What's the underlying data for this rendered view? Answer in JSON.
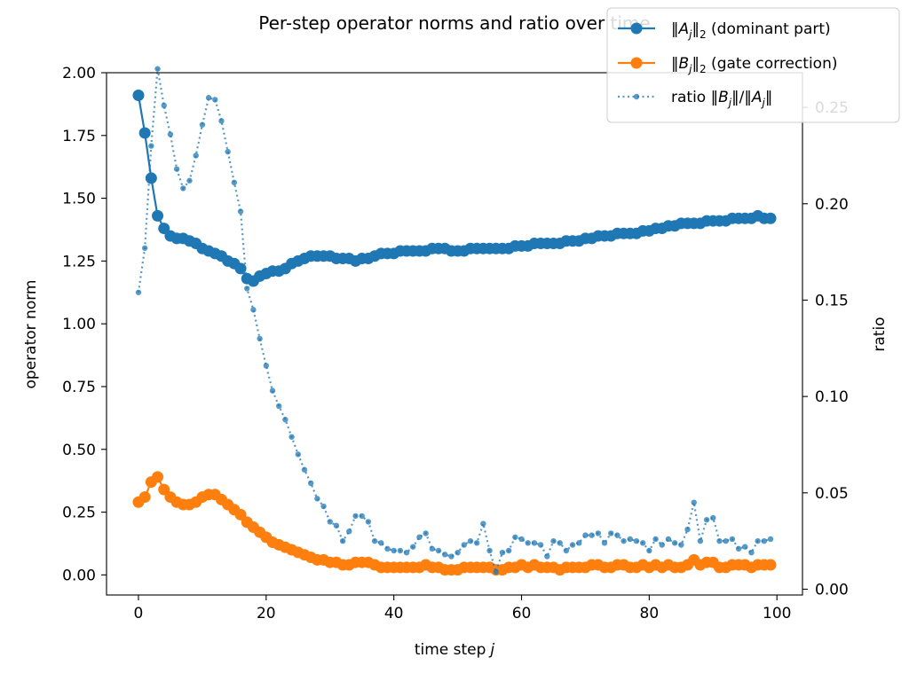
{
  "chart_data": {
    "type": "line",
    "title": "Per-step operator norms and ratio over time",
    "xlabel": "time step",
    "xlabel_var": "j",
    "ylabel": "operator norm",
    "y2label": "ratio",
    "xlim": [
      -5,
      104
    ],
    "ylim": [
      -0.08,
      2.0
    ],
    "y2lim": [
      -0.003,
      0.268
    ],
    "xticks": [
      0,
      20,
      40,
      60,
      80,
      100
    ],
    "xtick_labels": [
      "0",
      "20",
      "40",
      "60",
      "80",
      "100"
    ],
    "yticks": [
      0.0,
      0.25,
      0.5,
      0.75,
      1.0,
      1.25,
      1.5,
      1.75,
      2.0
    ],
    "ytick_labels": [
      "0.00",
      "0.25",
      "0.50",
      "0.75",
      "1.00",
      "1.25",
      "1.50",
      "1.75",
      "2.00"
    ],
    "y2ticks": [
      0.0,
      0.05,
      0.1,
      0.15,
      0.2,
      0.25
    ],
    "y2tick_labels": [
      "0.00",
      "0.05",
      "0.10",
      "0.15",
      "0.20",
      "0.25"
    ],
    "legend_location": "top-right",
    "series": [
      {
        "name": "‖A_j‖₂ (dominant part)",
        "legend_parts": [
          "‖",
          "A",
          "j",
          "‖",
          "2",
          " (dominant part)"
        ],
        "axis": "left",
        "style": "solid-marker",
        "color": "#1f77b4",
        "x": [
          0,
          1,
          2,
          3,
          4,
          5,
          6,
          7,
          8,
          9,
          10,
          11,
          12,
          13,
          14,
          15,
          16,
          17,
          18,
          19,
          20,
          21,
          22,
          23,
          24,
          25,
          26,
          27,
          28,
          29,
          30,
          31,
          32,
          33,
          34,
          35,
          36,
          37,
          38,
          39,
          40,
          41,
          42,
          43,
          44,
          45,
          46,
          47,
          48,
          49,
          50,
          51,
          52,
          53,
          54,
          55,
          56,
          57,
          58,
          59,
          60,
          61,
          62,
          63,
          64,
          65,
          66,
          67,
          68,
          69,
          70,
          71,
          72,
          73,
          74,
          75,
          76,
          77,
          78,
          79,
          80,
          81,
          82,
          83,
          84,
          85,
          86,
          87,
          88,
          89,
          90,
          91,
          92,
          93,
          94,
          95,
          96,
          97,
          98,
          99
        ],
        "values": [
          1.91,
          1.76,
          1.58,
          1.43,
          1.38,
          1.35,
          1.34,
          1.34,
          1.33,
          1.32,
          1.3,
          1.29,
          1.28,
          1.27,
          1.25,
          1.24,
          1.22,
          1.18,
          1.17,
          1.19,
          1.2,
          1.21,
          1.21,
          1.22,
          1.24,
          1.25,
          1.26,
          1.27,
          1.27,
          1.27,
          1.27,
          1.26,
          1.26,
          1.26,
          1.25,
          1.26,
          1.26,
          1.27,
          1.28,
          1.28,
          1.28,
          1.29,
          1.29,
          1.29,
          1.29,
          1.29,
          1.3,
          1.3,
          1.3,
          1.29,
          1.29,
          1.29,
          1.3,
          1.3,
          1.3,
          1.3,
          1.3,
          1.3,
          1.3,
          1.31,
          1.31,
          1.31,
          1.32,
          1.32,
          1.32,
          1.32,
          1.32,
          1.33,
          1.33,
          1.33,
          1.34,
          1.34,
          1.35,
          1.35,
          1.35,
          1.36,
          1.36,
          1.36,
          1.36,
          1.37,
          1.37,
          1.38,
          1.38,
          1.39,
          1.39,
          1.4,
          1.4,
          1.4,
          1.4,
          1.41,
          1.41,
          1.41,
          1.41,
          1.42,
          1.42,
          1.42,
          1.42,
          1.43,
          1.42,
          1.42
        ]
      },
      {
        "name": "‖B_j‖₂ (gate correction)",
        "legend_parts": [
          "‖",
          "B",
          "j",
          "‖",
          "2",
          " (gate correction)"
        ],
        "axis": "left",
        "style": "solid-marker",
        "color": "#ff7f0e",
        "x": [
          0,
          1,
          2,
          3,
          4,
          5,
          6,
          7,
          8,
          9,
          10,
          11,
          12,
          13,
          14,
          15,
          16,
          17,
          18,
          19,
          20,
          21,
          22,
          23,
          24,
          25,
          26,
          27,
          28,
          29,
          30,
          31,
          32,
          33,
          34,
          35,
          36,
          37,
          38,
          39,
          40,
          41,
          42,
          43,
          44,
          45,
          46,
          47,
          48,
          49,
          50,
          51,
          52,
          53,
          54,
          55,
          56,
          57,
          58,
          59,
          60,
          61,
          62,
          63,
          64,
          65,
          66,
          67,
          68,
          69,
          70,
          71,
          72,
          73,
          74,
          75,
          76,
          77,
          78,
          79,
          80,
          81,
          82,
          83,
          84,
          85,
          86,
          87,
          88,
          89,
          90,
          91,
          92,
          93,
          94,
          95,
          96,
          97,
          98,
          99
        ],
        "values": [
          0.29,
          0.31,
          0.37,
          0.39,
          0.34,
          0.31,
          0.29,
          0.28,
          0.28,
          0.29,
          0.31,
          0.32,
          0.32,
          0.3,
          0.28,
          0.26,
          0.24,
          0.21,
          0.19,
          0.17,
          0.15,
          0.13,
          0.12,
          0.11,
          0.1,
          0.09,
          0.08,
          0.07,
          0.06,
          0.06,
          0.05,
          0.05,
          0.04,
          0.04,
          0.05,
          0.05,
          0.05,
          0.04,
          0.03,
          0.03,
          0.03,
          0.03,
          0.03,
          0.03,
          0.03,
          0.04,
          0.03,
          0.03,
          0.02,
          0.02,
          0.02,
          0.03,
          0.03,
          0.03,
          0.03,
          0.03,
          0.02,
          0.02,
          0.03,
          0.03,
          0.04,
          0.03,
          0.04,
          0.03,
          0.03,
          0.03,
          0.02,
          0.03,
          0.03,
          0.03,
          0.03,
          0.04,
          0.04,
          0.03,
          0.03,
          0.04,
          0.04,
          0.03,
          0.03,
          0.04,
          0.03,
          0.04,
          0.03,
          0.04,
          0.03,
          0.03,
          0.04,
          0.06,
          0.04,
          0.05,
          0.05,
          0.03,
          0.03,
          0.04,
          0.04,
          0.04,
          0.03,
          0.04,
          0.04,
          0.04
        ]
      },
      {
        "name": "ratio ‖B_j‖/‖A_j‖",
        "legend_parts": [
          "ratio ‖",
          "B",
          "j",
          "‖/‖",
          "A",
          "j",
          "‖"
        ],
        "axis": "right",
        "style": "dotted-marker",
        "color": "#1f77b4",
        "x": [
          0,
          1,
          2,
          3,
          4,
          5,
          6,
          7,
          8,
          9,
          10,
          11,
          12,
          13,
          14,
          15,
          16,
          17,
          18,
          19,
          20,
          21,
          22,
          23,
          24,
          25,
          26,
          27,
          28,
          29,
          30,
          31,
          32,
          33,
          34,
          35,
          36,
          37,
          38,
          39,
          40,
          41,
          42,
          43,
          44,
          45,
          46,
          47,
          48,
          49,
          50,
          51,
          52,
          53,
          54,
          55,
          56,
          57,
          58,
          59,
          60,
          61,
          62,
          63,
          64,
          65,
          66,
          67,
          68,
          69,
          70,
          71,
          72,
          73,
          74,
          75,
          76,
          77,
          78,
          79,
          80,
          81,
          82,
          83,
          84,
          85,
          86,
          87,
          88,
          89,
          90,
          91,
          92,
          93,
          94,
          95,
          96,
          97,
          98,
          99
        ],
        "values": [
          0.154,
          0.177,
          0.23,
          0.27,
          0.251,
          0.236,
          0.218,
          0.208,
          0.212,
          0.225,
          0.241,
          0.255,
          0.254,
          0.243,
          0.227,
          0.211,
          0.196,
          0.156,
          0.145,
          0.13,
          0.116,
          0.103,
          0.095,
          0.088,
          0.079,
          0.07,
          0.062,
          0.055,
          0.047,
          0.043,
          0.035,
          0.033,
          0.025,
          0.03,
          0.038,
          0.038,
          0.035,
          0.025,
          0.024,
          0.021,
          0.02,
          0.02,
          0.019,
          0.022,
          0.027,
          0.029,
          0.021,
          0.02,
          0.018,
          0.017,
          0.019,
          0.023,
          0.025,
          0.024,
          0.034,
          0.02,
          0.009,
          0.019,
          0.02,
          0.027,
          0.026,
          0.024,
          0.024,
          0.023,
          0.017,
          0.025,
          0.024,
          0.02,
          0.023,
          0.024,
          0.028,
          0.028,
          0.029,
          0.024,
          0.029,
          0.028,
          0.025,
          0.026,
          0.025,
          0.024,
          0.02,
          0.026,
          0.023,
          0.026,
          0.024,
          0.023,
          0.031,
          0.045,
          0.025,
          0.036,
          0.037,
          0.025,
          0.025,
          0.026,
          0.021,
          0.022,
          0.019,
          0.025,
          0.025,
          0.026
        ]
      }
    ]
  }
}
